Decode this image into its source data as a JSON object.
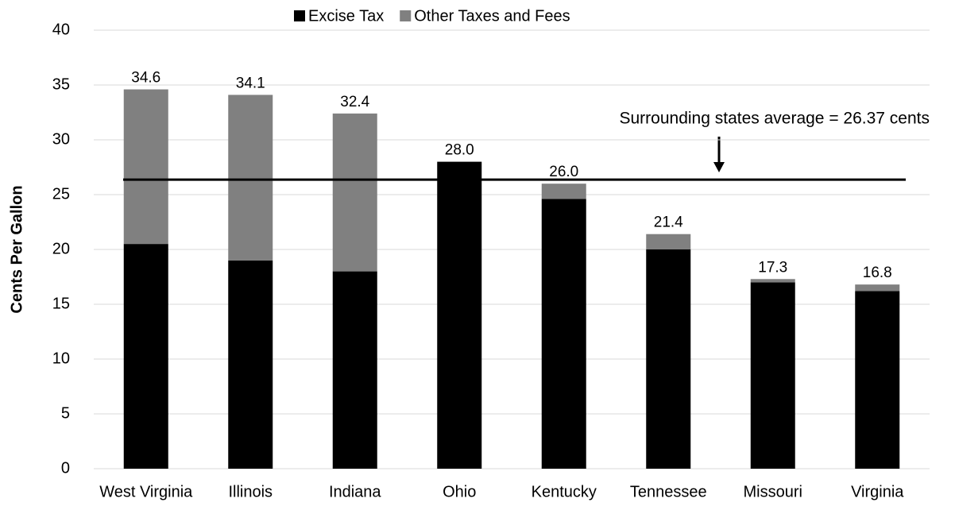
{
  "chart_data": {
    "type": "stacked_bar",
    "y_label": "Cents Per Gallon",
    "categories": [
      "West Virginia",
      "Illinois",
      "Indiana",
      "Ohio",
      "Kentucky",
      "Tennessee",
      "Missouri",
      "Virginia"
    ],
    "series": [
      {
        "name": "Excise Tax",
        "color": "#000000",
        "values": [
          20.5,
          19.0,
          18.0,
          28.0,
          24.6,
          20.0,
          17.0,
          16.2
        ]
      },
      {
        "name": "Other Taxes and Fees",
        "color": "#808080",
        "values": [
          14.1,
          15.1,
          14.4,
          0,
          1.4,
          1.4,
          0.3,
          0.6
        ]
      }
    ],
    "totals": [
      34.6,
      34.1,
      32.4,
      28.0,
      26.0,
      21.4,
      17.3,
      16.8
    ],
    "total_labels": [
      "34.6",
      "34.1",
      "32.4",
      "28.0",
      "26.0",
      "21.4",
      "17.3",
      "16.8"
    ],
    "average": 26.37,
    "annotation": "Surrounding states average = 26.37 cents",
    "ylim": [
      0,
      40
    ],
    "yticks": [
      0,
      5,
      10,
      15,
      20,
      25,
      30,
      35,
      40
    ],
    "grid": true
  }
}
